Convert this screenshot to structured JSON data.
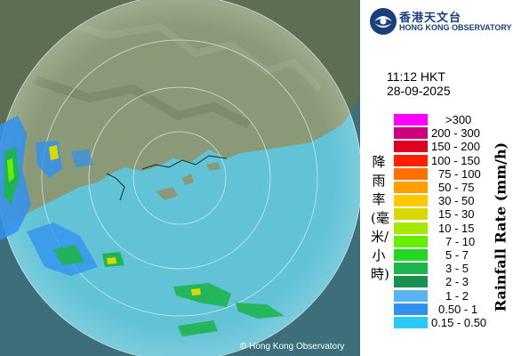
{
  "logo": {
    "cn": "香港天文台",
    "en": "HONG KONG OBSERVATORY"
  },
  "timestamp": {
    "time": "11:12 HKT",
    "date": "28-09-2025"
  },
  "legend": {
    "title_cn": "降雨率(毫米/小時)",
    "title_en": "Rainfall Rate (mm/h)",
    "levels": [
      {
        "label": ">300",
        "color": "#ff00ff"
      },
      {
        "label": "200 - 300",
        "color": "#cc0080"
      },
      {
        "label": "150 - 200",
        "color": "#e00020"
      },
      {
        "label": "100 - 150",
        "color": "#ff2000"
      },
      {
        "label": "75 - 100",
        "color": "#ff7000"
      },
      {
        "label": "50 - 75",
        "color": "#ffa000"
      },
      {
        "label": "30 - 50",
        "color": "#ffc800"
      },
      {
        "label": "15 - 30",
        "color": "#d8d800"
      },
      {
        "label": "10 - 15",
        "color": "#a8e800"
      },
      {
        "label": "7 - 10",
        "color": "#66ee00"
      },
      {
        "label": "5 - 7",
        "color": "#22d822"
      },
      {
        "label": "3 - 5",
        "color": "#1eb450"
      },
      {
        "label": "2 - 3",
        "color": "#1a9050"
      },
      {
        "label": "1 - 2",
        "color": "#5ab4f0"
      },
      {
        "label": "0.50 - 1",
        "color": "#3090f0"
      },
      {
        "label": "0.15 - 0.50",
        "color": "#28c8f8"
      }
    ]
  },
  "credit": "© Hong Kong Observatory",
  "map": {
    "land_color": "#7d8c6a",
    "sea_color": "#5cbcd4",
    "outside_color": "#4a5a45"
  }
}
